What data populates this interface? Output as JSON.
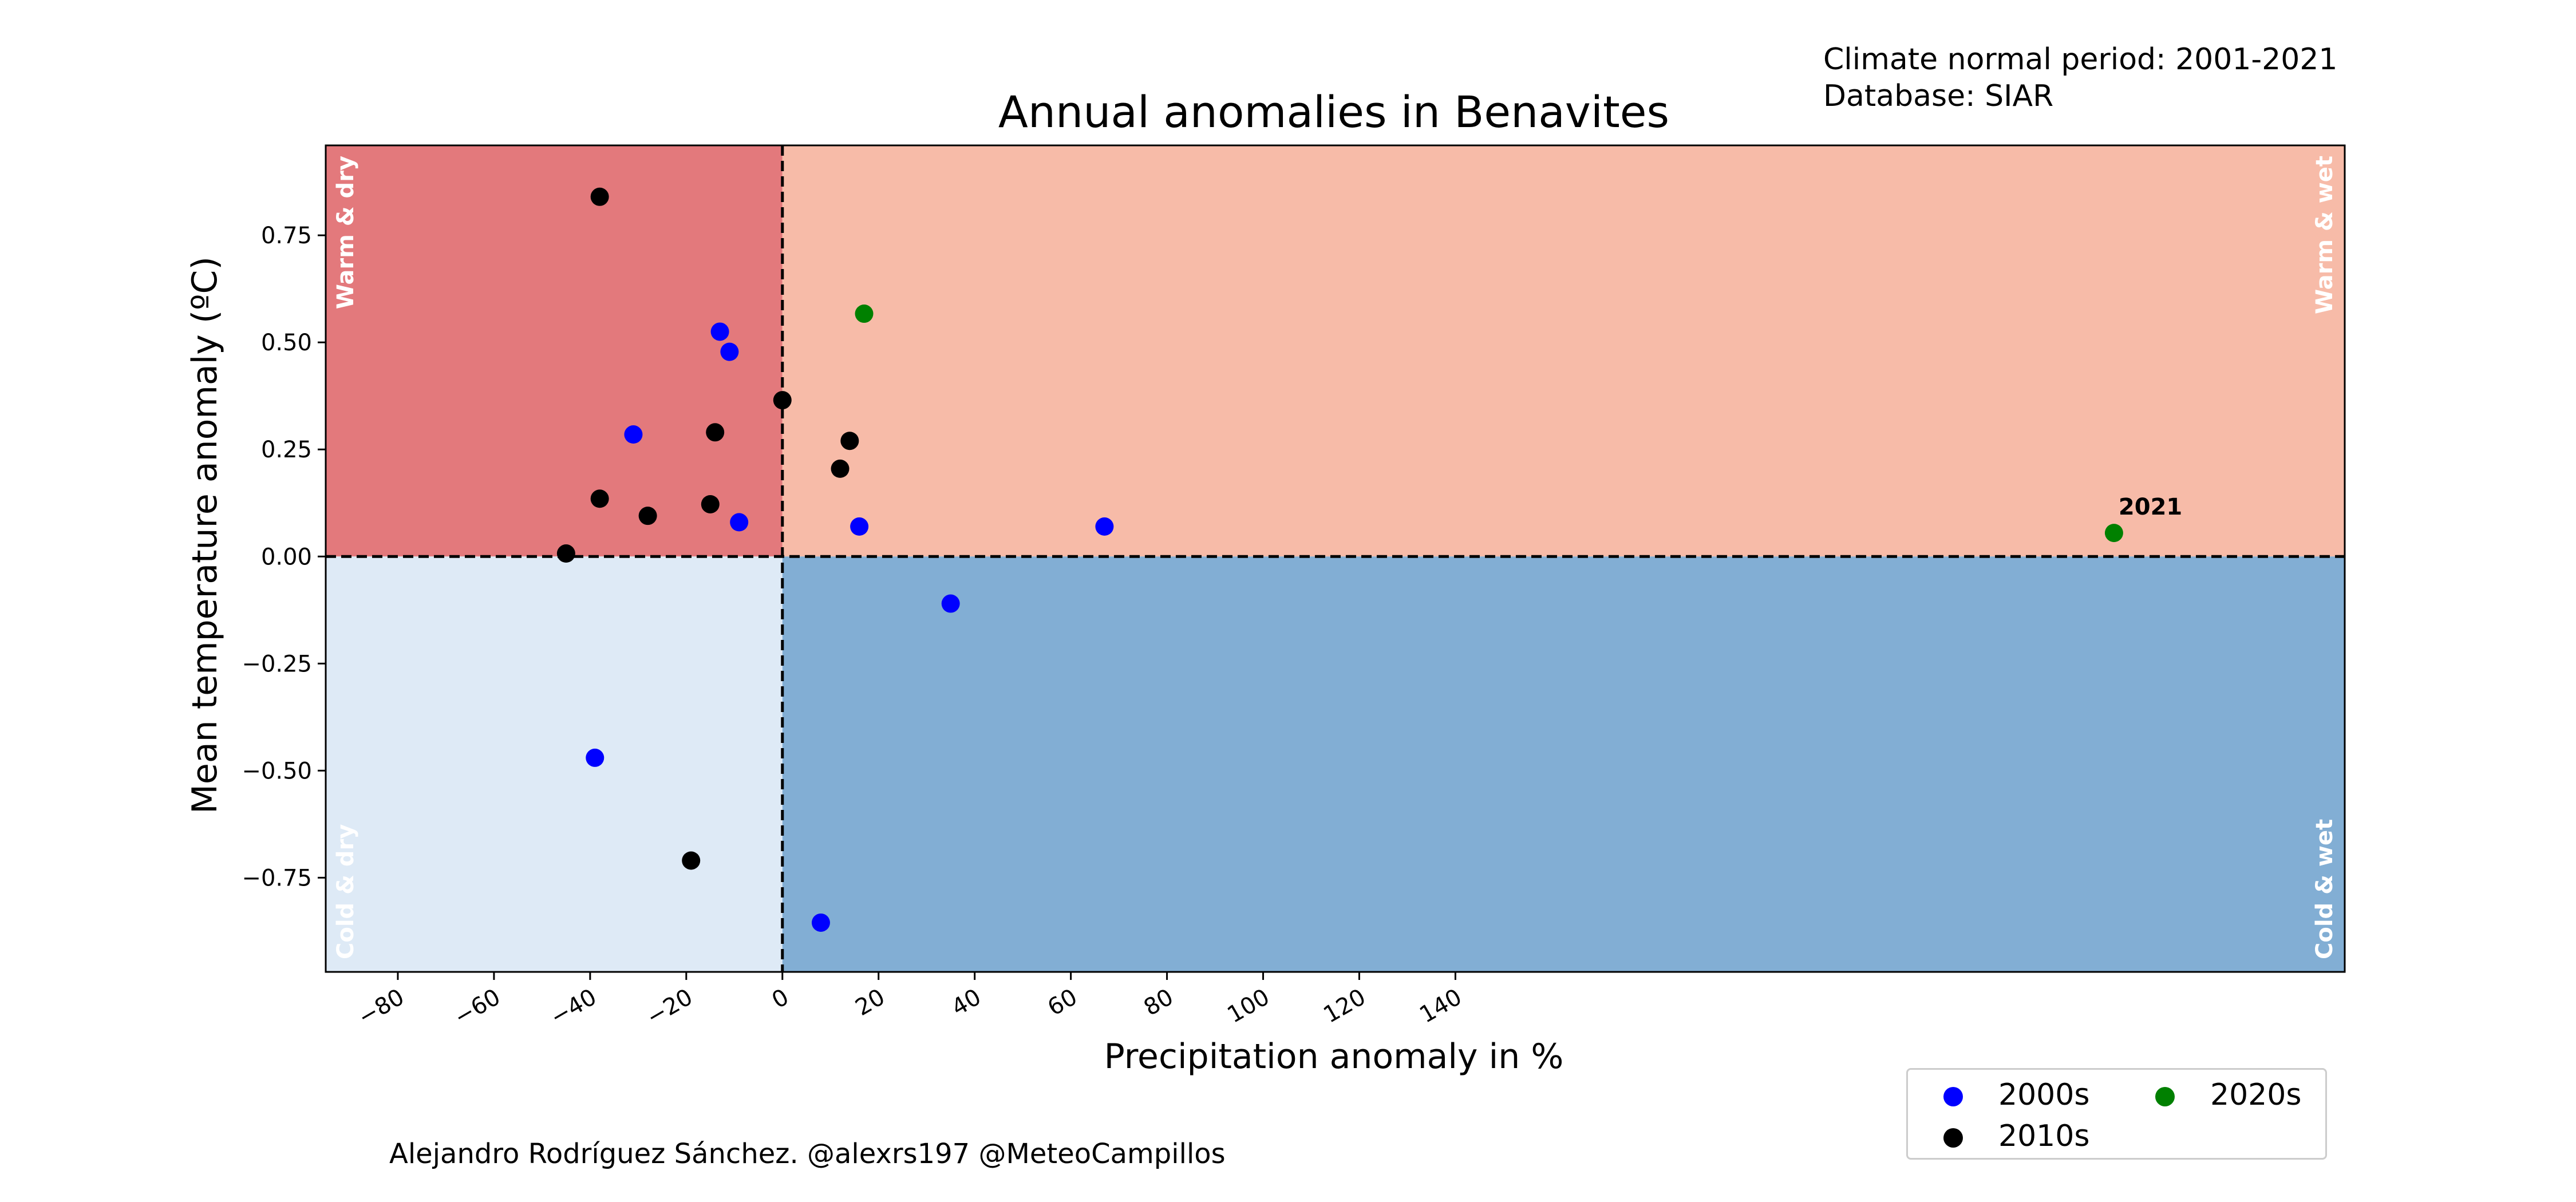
{
  "header": {
    "normal_period": "Climate normal period: 2001-2021",
    "database": "Database: SIAR"
  },
  "credit": "Alejandro Rodríguez Sánchez. @alexrs197 @MeteoCampillos",
  "colors": {
    "warm_dry": "#e3797c",
    "warm_wet": "#f7bba8",
    "cold_dry": "#deeaf6",
    "cold_wet": "#82aed4",
    "quadrant_label": "#ffffff"
  },
  "chart_data": {
    "type": "scatter",
    "title": "Annual anomalies in Benavites",
    "xlabel": "Precipitation anomaly in %",
    "ylabel": "Mean temperature anomaly (ºC)",
    "xlim": [
      -95,
      325
    ],
    "ylim": [
      -0.97,
      0.96
    ],
    "x_ticks": [
      -80,
      -60,
      -40,
      -20,
      0,
      20,
      40,
      60,
      80,
      100,
      120,
      140
    ],
    "x_tick_labels": [
      "−80",
      "−60",
      "−40",
      "−20",
      "0",
      "20",
      "40",
      "60",
      "80",
      "100",
      "120",
      "140"
    ],
    "y_ticks": [
      -0.75,
      -0.5,
      -0.25,
      0,
      0.25,
      0.5,
      0.75
    ],
    "y_tick_labels": [
      "−0.75",
      "−0.50",
      "−0.25",
      "0.00",
      "0.25",
      "0.50",
      "0.75"
    ],
    "grid": false,
    "reference_lines": {
      "x": 0,
      "y": 0
    },
    "quadrant_labels": {
      "warm_dry": "Warm & dry",
      "warm_wet": "Warm & wet",
      "cold_dry": "Cold & dry",
      "cold_wet": "Cold & wet"
    },
    "legend_position": "below-right",
    "series": [
      {
        "name": "2000s",
        "color": "#0000ff",
        "points": [
          {
            "x": -13,
            "y": 0.525
          },
          {
            "x": -11,
            "y": 0.478
          },
          {
            "x": -31,
            "y": 0.285
          },
          {
            "x": -9,
            "y": 0.08
          },
          {
            "x": 16,
            "y": 0.07
          },
          {
            "x": 67,
            "y": 0.07
          },
          {
            "x": 35,
            "y": -0.11
          },
          {
            "x": -39,
            "y": -0.47
          },
          {
            "x": 8,
            "y": -0.855
          }
        ]
      },
      {
        "name": "2010s",
        "color": "#000000",
        "points": [
          {
            "x": -38,
            "y": 0.84
          },
          {
            "x": 0,
            "y": 0.365
          },
          {
            "x": -14,
            "y": 0.29
          },
          {
            "x": 14,
            "y": 0.27
          },
          {
            "x": 12,
            "y": 0.205
          },
          {
            "x": -38,
            "y": 0.135
          },
          {
            "x": -15,
            "y": 0.122
          },
          {
            "x": -28,
            "y": 0.095
          },
          {
            "x": -45,
            "y": 0.007
          },
          {
            "x": -19,
            "y": -0.71
          }
        ]
      },
      {
        "name": "2020s",
        "color": "#008000",
        "points": [
          {
            "x": 17,
            "y": 0.567
          },
          {
            "x": 277,
            "y": 0.055,
            "label": "2021"
          }
        ]
      }
    ]
  }
}
